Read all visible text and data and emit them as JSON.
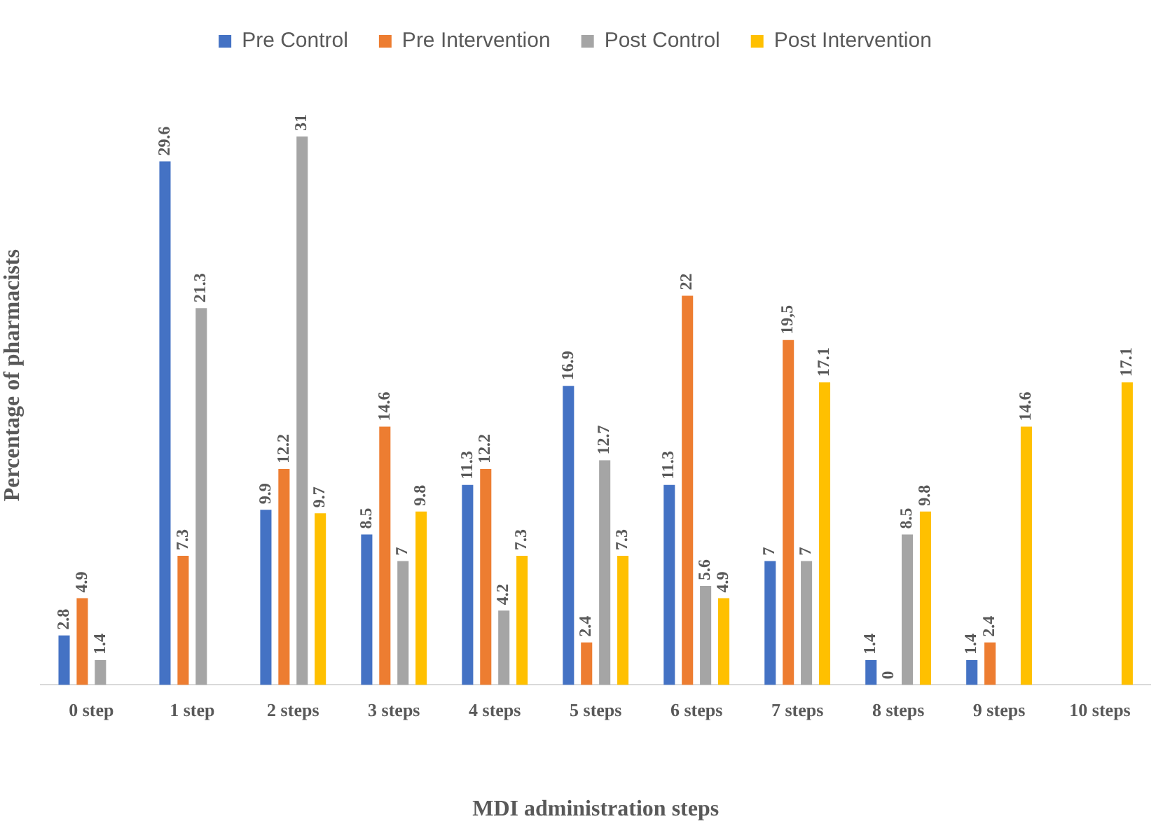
{
  "chart_data": {
    "type": "bar",
    "xlabel": "MDI administration steps",
    "ylabel": "Percentage of pharmacists",
    "categories": [
      "0 step",
      "1 step",
      "2 steps",
      "3 steps",
      "4 steps",
      "5 steps",
      "6 steps",
      "7 steps",
      "8 steps",
      "9 steps",
      "10 steps"
    ],
    "series": [
      {
        "name": "Pre Control",
        "color": "#4472c4",
        "values": [
          2.8,
          29.6,
          9.9,
          8.5,
          11.3,
          16.9,
          11.3,
          7,
          1.4,
          1.4,
          null
        ],
        "value_labels": [
          "2.8",
          "29.6",
          "9.9",
          "8.5",
          "11.3",
          "16.9",
          "11.3",
          "7",
          "1.4",
          "1.4",
          null
        ]
      },
      {
        "name": "Pre Intervention",
        "color": "#ed7d31",
        "values": [
          4.9,
          7.3,
          12.2,
          14.6,
          12.2,
          2.4,
          22,
          19.5,
          0,
          2.4,
          null
        ],
        "value_labels": [
          "4.9",
          "7.3",
          "12.2",
          "14.6",
          "12.2",
          "2.4",
          "22",
          "19,5",
          "0",
          "2.4",
          null
        ]
      },
      {
        "name": "Post Control",
        "color": "#a5a5a5",
        "values": [
          1.4,
          21.3,
          31,
          7,
          4.2,
          12.7,
          5.6,
          7,
          8.5,
          null,
          null
        ],
        "value_labels": [
          "1.4",
          "21.3",
          "31",
          "7",
          "4.2",
          "12.7",
          "5.6",
          "7",
          "8.5",
          null,
          null
        ]
      },
      {
        "name": "Post Intervention",
        "color": "#ffc000",
        "values": [
          null,
          null,
          9.7,
          9.8,
          7.3,
          7.3,
          4.9,
          17.1,
          9.8,
          14.6,
          17.1
        ],
        "value_labels": [
          null,
          null,
          "9.7",
          "9.8",
          "7.3",
          "7.3",
          "4.9",
          "17.1",
          "9.8",
          "14.6",
          "17.1"
        ]
      }
    ],
    "tick_labels": "x",
    "grid": false,
    "legend": "top"
  }
}
